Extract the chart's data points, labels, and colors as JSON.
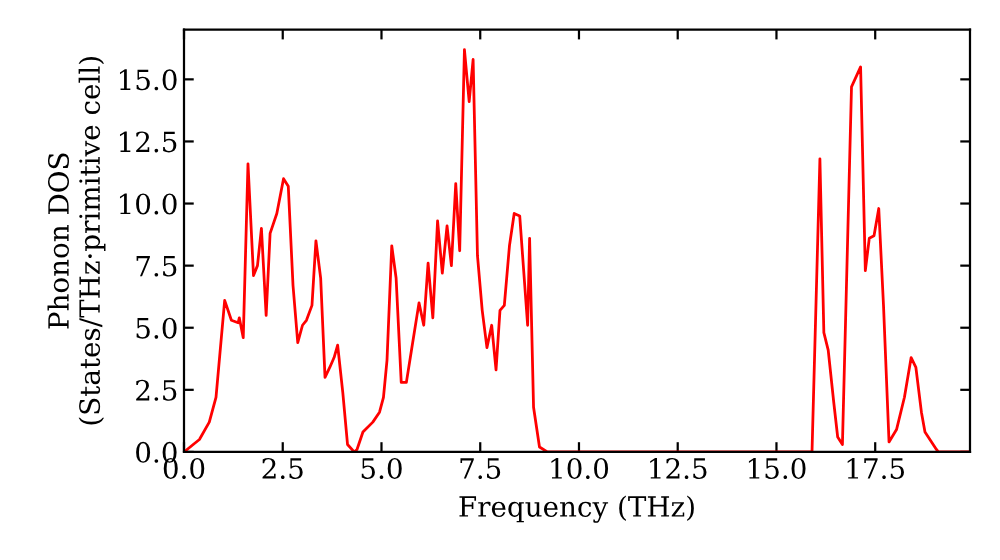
{
  "chart_data": {
    "type": "line",
    "xlabel": "Frequency (THz)",
    "ylabel": "Phonon DOS\n(States/THz·primitive cell)",
    "xlim": [
      0,
      19.9
    ],
    "ylim": [
      0,
      17
    ],
    "xticks": [
      {
        "value": 0,
        "label": "0.0"
      },
      {
        "value": 2.5,
        "label": "2.5"
      },
      {
        "value": 5,
        "label": "5.0"
      },
      {
        "value": 7.5,
        "label": "7.5"
      },
      {
        "value": 10,
        "label": "10.0"
      },
      {
        "value": 12.5,
        "label": "12.5"
      },
      {
        "value": 15,
        "label": "15.0"
      },
      {
        "value": 17.5,
        "label": "17.5"
      }
    ],
    "yticks": [
      {
        "value": 0,
        "label": "0.0"
      },
      {
        "value": 2.5,
        "label": "2.5"
      },
      {
        "value": 5,
        "label": "5.0"
      },
      {
        "value": 7.5,
        "label": "7.5"
      },
      {
        "value": 10,
        "label": "10.0"
      },
      {
        "value": 12.5,
        "label": "12.5"
      },
      {
        "value": 15,
        "label": "15.0"
      }
    ],
    "grid": false,
    "legend": false,
    "marker": "none",
    "line_style": "solid",
    "series": [
      {
        "color": "#ff0000",
        "x": [
          0,
          0.39,
          0.64,
          0.81,
          1.03,
          1.2,
          1.37,
          1.4,
          1.5,
          1.62,
          1.76,
          1.86,
          1.96,
          2.08,
          2.18,
          2.35,
          2.52,
          2.64,
          2.76,
          2.88,
          3.0,
          3.1,
          3.24,
          3.34,
          3.46,
          3.57,
          3.69,
          3.8,
          3.89,
          4.02,
          4.14,
          4.31,
          4.38,
          4.53,
          4.78,
          4.95,
          5.05,
          5.14,
          5.26,
          5.37,
          5.5,
          5.63,
          5.76,
          5.95,
          6.07,
          6.18,
          6.3,
          6.42,
          6.54,
          6.66,
          6.77,
          6.88,
          6.98,
          7.1,
          7.22,
          7.32,
          7.43,
          7.55,
          7.67,
          7.79,
          7.9,
          8.0,
          8.11,
          8.24,
          8.36,
          8.5,
          8.7,
          8.75,
          8.85,
          9.0,
          9.2,
          15.9,
          16.1,
          16.2,
          16.31,
          16.45,
          16.55,
          16.67,
          16.9,
          17.13,
          17.25,
          17.35,
          17.47,
          17.59,
          17.71,
          17.85,
          18.04,
          18.24,
          18.41,
          18.53,
          18.67,
          18.76,
          19.05,
          19.1,
          19.9
        ],
        "values": [
          0,
          0.5,
          1.2,
          2.2,
          6.1,
          5.3,
          5.2,
          5.4,
          4.6,
          11.6,
          7.1,
          7.5,
          9.0,
          5.5,
          8.8,
          9.6,
          11.0,
          10.7,
          6.7,
          4.4,
          5.1,
          5.3,
          5.9,
          8.5,
          7.0,
          3.0,
          3.4,
          3.8,
          4.3,
          2.4,
          0.3,
          0,
          0.1,
          0.8,
          1.2,
          1.6,
          2.2,
          3.7,
          8.3,
          7.0,
          2.8,
          2.8,
          4.1,
          6.0,
          5.1,
          7.6,
          5.4,
          9.3,
          7.2,
          9.1,
          7.5,
          10.8,
          8.1,
          16.2,
          14.1,
          15.8,
          7.9,
          5.7,
          4.2,
          5.1,
          3.3,
          5.7,
          5.9,
          8.3,
          9.6,
          9.5,
          5.1,
          8.6,
          1.8,
          0.2,
          0,
          0,
          11.8,
          4.8,
          4.1,
          2.0,
          0.6,
          0.3,
          14.7,
          15.5,
          7.3,
          8.6,
          8.7,
          9.8,
          5.9,
          0.4,
          0.9,
          2.2,
          3.8,
          3.4,
          1.6,
          0.8,
          0.1,
          0,
          0
        ]
      }
    ]
  }
}
